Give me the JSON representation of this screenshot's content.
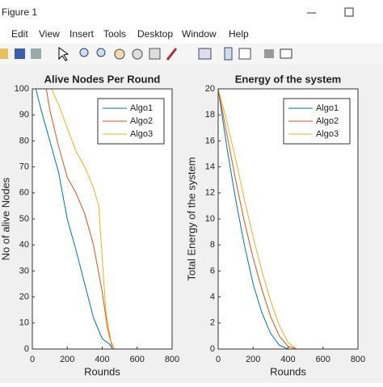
{
  "window": {
    "title": "Figure 1"
  },
  "menu": [
    "Edit",
    "View",
    "Insert",
    "Tools",
    "Desktop",
    "Window",
    "Help"
  ],
  "chart_data": [
    {
      "type": "line",
      "title": "Alive Nodes Per Round",
      "xlabel": "Rounds",
      "ylabel": "No of alive Nodes",
      "xlim": [
        0,
        800
      ],
      "xticks": [
        0,
        200,
        400,
        600,
        800
      ],
      "ylim": [
        0,
        100
      ],
      "yticks": [
        0,
        10,
        20,
        30,
        40,
        50,
        60,
        70,
        80,
        90,
        100
      ],
      "grid": false,
      "legend": "northeast",
      "series": [
        {
          "name": "Algo1",
          "color": "#0072bd",
          "x": [
            20,
            50,
            100,
            150,
            200,
            250,
            300,
            350,
            400,
            440,
            460
          ],
          "values": [
            100,
            92,
            80,
            68,
            50,
            38,
            25,
            12,
            4,
            2,
            0
          ]
        },
        {
          "name": "Algo2",
          "color": "#d95319",
          "x": [
            80,
            100,
            150,
            200,
            250,
            300,
            350,
            400,
            430,
            460
          ],
          "values": [
            100,
            92,
            78,
            66,
            60,
            52,
            40,
            22,
            8,
            0
          ]
        },
        {
          "name": "Algo3",
          "color": "#edb120",
          "x": [
            110,
            150,
            200,
            250,
            300,
            350,
            380,
            400,
            420,
            450,
            470
          ],
          "values": [
            100,
            94,
            85,
            76,
            70,
            62,
            55,
            35,
            15,
            3,
            0
          ]
        }
      ]
    },
    {
      "type": "line",
      "title": "Energy of the system",
      "xlabel": "Rounds",
      "ylabel": "Total Energy of the system",
      "xlim": [
        0,
        800
      ],
      "xticks": [
        0,
        200,
        400,
        600,
        800
      ],
      "ylim": [
        0,
        20
      ],
      "yticks": [
        0,
        2,
        4,
        6,
        8,
        10,
        12,
        14,
        16,
        18,
        20
      ],
      "grid": false,
      "legend": "northeast",
      "series": [
        {
          "name": "Algo1",
          "color": "#0072bd",
          "x": [
            0,
            50,
            100,
            150,
            200,
            250,
            300,
            350,
            400
          ],
          "values": [
            20,
            15.5,
            11.5,
            8,
            5,
            2.8,
            1.2,
            0.3,
            0
          ]
        },
        {
          "name": "Algo2",
          "color": "#d95319",
          "x": [
            0,
            50,
            100,
            150,
            200,
            250,
            300,
            350,
            400,
            450
          ],
          "values": [
            20,
            16.5,
            13,
            9.8,
            7,
            4.6,
            2.5,
            1,
            0.2,
            0
          ]
        },
        {
          "name": "Algo3",
          "color": "#edb120",
          "x": [
            0,
            50,
            100,
            150,
            200,
            250,
            300,
            350,
            400,
            450
          ],
          "values": [
            20,
            17.5,
            14.6,
            11.5,
            8.6,
            6,
            3.7,
            1.8,
            0.5,
            0
          ]
        }
      ]
    }
  ]
}
